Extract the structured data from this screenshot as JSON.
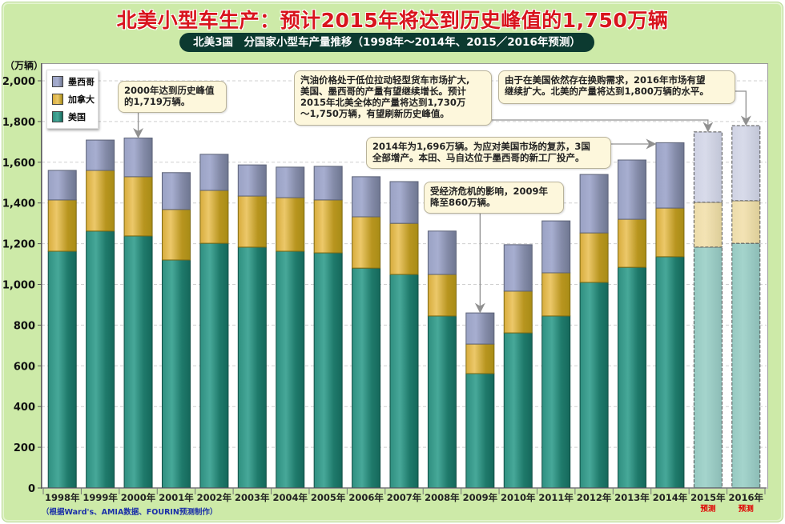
{
  "header": {
    "title": "北美小型车生产：预计2015年将达到历史峰值的1,750万辆",
    "subtitle": "北美3国　分国家小型车产量推移（1998年～2014年、2015／2016年预测）"
  },
  "footer": {
    "source": "（根据Ward's、AMIA数据、FOURIN预测制作）"
  },
  "colors": {
    "us": "#2e8b7c",
    "canada": "#c9a52c",
    "mexico": "#8f97b8",
    "background": "#cdeaa8",
    "title": "#d8141d",
    "forecast_label": "#e00000"
  },
  "chart_data": {
    "type": "bar",
    "stacked": true,
    "title": "北美小型车生产：预计2015年将达到历史峰值的1,750万辆",
    "subtitle": "北美3国　分国家小型车产量推移（1998年～2014年、2015／2016年预测）",
    "ylabel": "（万辆）",
    "xlabel": "",
    "ylim": [
      0,
      2000
    ],
    "yticks": [
      0,
      200,
      400,
      600,
      800,
      1000,
      1200,
      1400,
      1600,
      1800,
      2000
    ],
    "ytick_labels": [
      "0",
      "200",
      "400",
      "600",
      "800",
      "1,000",
      "1,200",
      "1,400",
      "1,600",
      "1,800",
      "2,000"
    ],
    "grid": true,
    "legend_position": "top-left",
    "categories": [
      "1998年",
      "1999年",
      "2000年",
      "2001年",
      "2002年",
      "2003年",
      "2004年",
      "2005年",
      "2006年",
      "2007年",
      "2008年",
      "2009年",
      "2010年",
      "2011年",
      "2012年",
      "2013年",
      "2014年",
      "2015年",
      "2016年"
    ],
    "forecast": [
      false,
      false,
      false,
      false,
      false,
      false,
      false,
      false,
      false,
      false,
      false,
      false,
      false,
      false,
      false,
      false,
      false,
      true,
      true
    ],
    "forecast_label": "预测",
    "series": [
      {
        "name": "美国",
        "key": "us",
        "values": [
          1163,
          1262,
          1238,
          1120,
          1202,
          1183,
          1163,
          1155,
          1080,
          1049,
          845,
          562,
          762,
          845,
          1010,
          1084,
          1136,
          1183,
          1202
        ]
      },
      {
        "name": "加拿大",
        "key": "canada",
        "values": [
          252,
          298,
          291,
          248,
          260,
          251,
          263,
          260,
          252,
          251,
          204,
          145,
          205,
          212,
          243,
          236,
          239,
          220,
          209
        ]
      },
      {
        "name": "墨西哥",
        "key": "mexico",
        "values": [
          145,
          149,
          190,
          181,
          177,
          153,
          150,
          165,
          197,
          205,
          213,
          153,
          228,
          255,
          287,
          291,
          321,
          346,
          369
        ]
      }
    ],
    "totals": [
      1560,
      1709,
      1719,
      1549,
      1639,
      1587,
      1576,
      1580,
      1529,
      1505,
      1262,
      860,
      1195,
      1312,
      1540,
      1611,
      1696,
      1749,
      1780
    ],
    "legend": [
      "墨西哥",
      "加拿大",
      "美国"
    ],
    "annotations": [
      {
        "id": "peak2000",
        "text_lines": [
          "2000年达到历史峰值",
          "的1,719万辆。"
        ],
        "target": "2000年"
      },
      {
        "id": "fc2015",
        "text_lines": [
          "汽油价格处于低位拉动轻型货车市场扩大,",
          "美国、墨西哥的产量有望继续增长。预计",
          "2015年北美全体的产量将达到1,730万",
          "～1,750万辆，有望刷新历史峰值。"
        ],
        "target": "2015年"
      },
      {
        "id": "fc2016",
        "text_lines": [
          "由于在美国依然存在换购需求，2016年市场有望",
          "继续扩大。北美的产量将达到1,800万辆的水平。"
        ],
        "target": "2016年"
      },
      {
        "id": "y2014",
        "text_lines": [
          "2014年为1,696万辆。为应对美国市场的复苏，3国",
          "全部增产。本田、马自达位于墨西哥的新工厂投产。"
        ],
        "target": "2014年"
      },
      {
        "id": "crisis2009",
        "text_lines": [
          "受经济危机的影响，2009年",
          "降至860万辆。"
        ],
        "target": "2009年"
      }
    ]
  }
}
